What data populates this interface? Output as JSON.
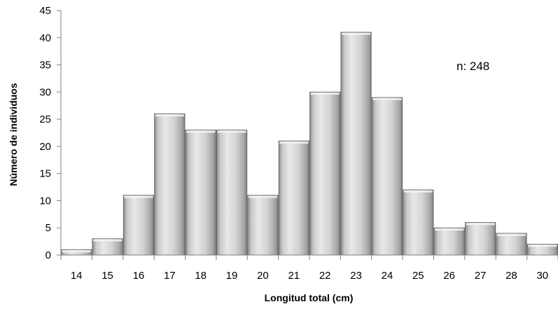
{
  "chart_data": {
    "type": "bar",
    "categories": [
      "14",
      "15",
      "16",
      "17",
      "18",
      "19",
      "20",
      "21",
      "22",
      "23",
      "24",
      "25",
      "26",
      "27",
      "28",
      "30"
    ],
    "values": [
      1,
      3,
      11,
      26,
      23,
      23,
      11,
      21,
      30,
      41,
      29,
      12,
      5,
      6,
      4,
      2
    ],
    "xlabel": "Longitud total (cm)",
    "ylabel": "Número de individuos",
    "ylim": [
      0,
      45
    ],
    "yticks": [
      0,
      5,
      10,
      15,
      20,
      25,
      30,
      35,
      40,
      45
    ],
    "grid": false,
    "legend": "none",
    "annotation": "n: 248",
    "colors": {
      "bar_light": "#e6e6e6",
      "bar_dark": "#8f8f8f",
      "bar_edge": "#5a5a5a",
      "axis": "#7f7f7f"
    }
  }
}
